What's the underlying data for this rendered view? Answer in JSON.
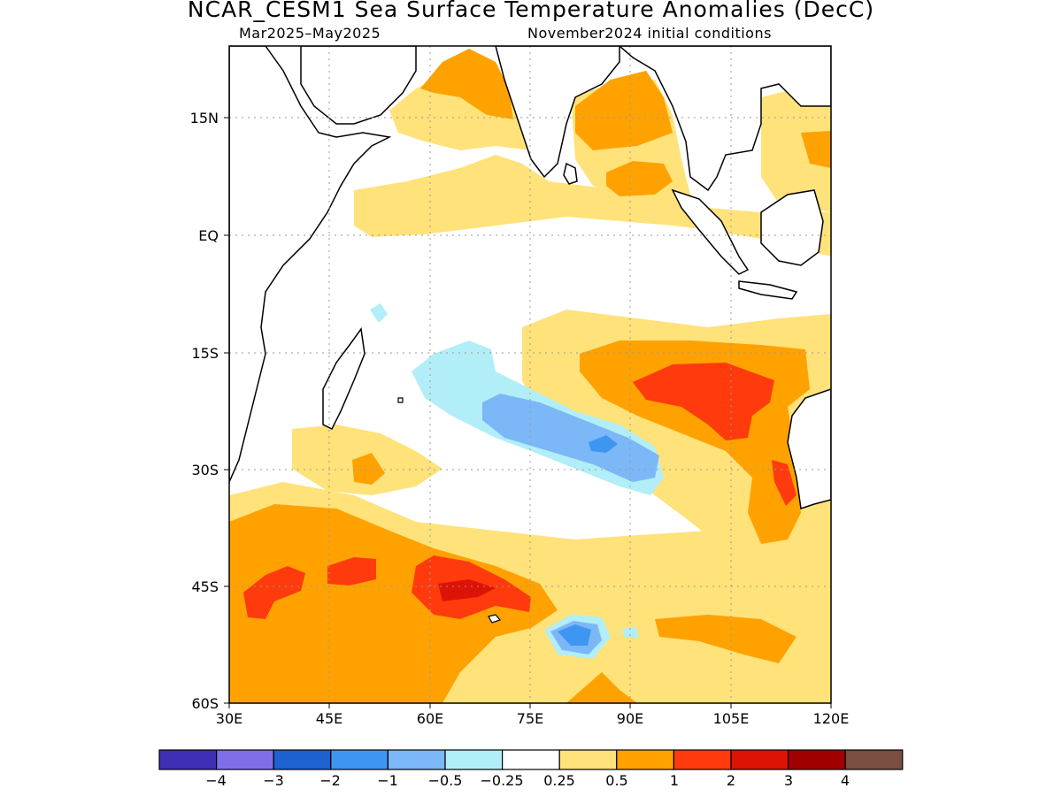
{
  "title": "NCAR_CESM1 Sea Surface Temperature Anomalies (DecC)",
  "subtitle_left": "Mar2025–May2025",
  "subtitle_right": "November2024 initial conditions",
  "map": {
    "lon_range": [
      30,
      120
    ],
    "lat_range": [
      -60,
      24
    ],
    "x_ticks": [
      "30E",
      "45E",
      "60E",
      "75E",
      "90E",
      "105E",
      "120E"
    ],
    "y_ticks": [
      "15N",
      "EQ",
      "15S",
      "30S",
      "45S",
      "60S"
    ],
    "gridlines": "dotted"
  },
  "legend": {
    "colors": [
      "#3f2fb4",
      "#7e6fe9",
      "#1d60d0",
      "#3f95f2",
      "#7cb7f7",
      "#b2eef8",
      "#ffffff",
      "#ffe27a",
      "#ffa200",
      "#ff3b0e",
      "#dc1305",
      "#a10000",
      "#7a4f42"
    ],
    "labels": [
      "−4",
      "−3",
      "−2",
      "−1",
      "−0.5",
      "−0.25",
      "0.25",
      "0.5",
      "1",
      "2",
      "3",
      "4"
    ]
  }
}
